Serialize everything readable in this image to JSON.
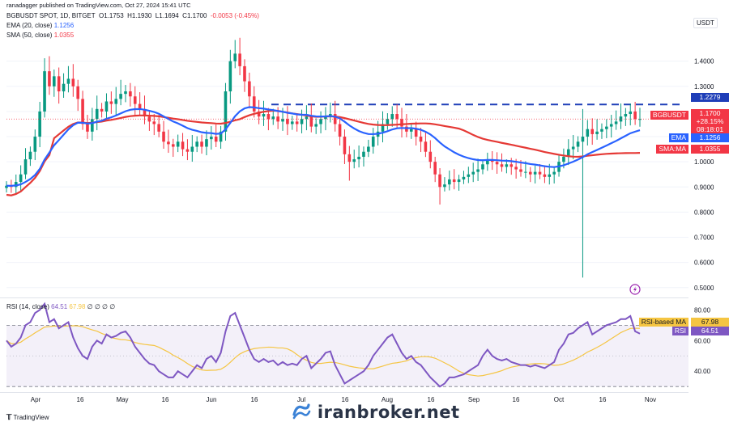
{
  "published": "ranadagger published on TradingView.com, Oct 27, 2024 15:41 UTC",
  "symbol_line": "BGBUSDT SPOT, 1D, BITGET",
  "ohlc": {
    "O": "1.1753",
    "H": "1.1930",
    "L": "1.1694",
    "C": "1.1700",
    "chg": "-0.0053 (-0.45%)"
  },
  "ema_label": "EMA (20, close)",
  "ema_value": "1.1256",
  "sma_label": "SMA (50, close)",
  "sma_value": "1.0355",
  "rsi_label": "RSI (14, close)",
  "rsi_value": "64.51",
  "rsi_ma_value": "67.98",
  "rsi_extra": "∅ ∅ ∅ ∅",
  "currency": "USDT",
  "tags": {
    "resistance": "1.2279",
    "symbol": "BGBUSDT",
    "price": "1.1700",
    "pct": "+28.15%",
    "countdown": "08:18:01",
    "ema": "EMA",
    "ema_val": "1.1256",
    "sma": "SMA:MA",
    "sma_val": "1.0355",
    "rsi_ma": "RSI-based MA",
    "rsi_ma_val": "67.98",
    "rsi": "RSI",
    "rsi_val": "64.51"
  },
  "watermark": "iranbroker.net",
  "tv_logo": "TradingView",
  "colors": {
    "up": "#089981",
    "down": "#f23645",
    "ema": "#2962ff",
    "sma": "#f23645",
    "rsi": "#7e57c2",
    "rsi_ma": "#f5c542",
    "resistance": "#1e3eb8"
  },
  "chart_data": [
    {
      "type": "candlestick",
      "title": "BGBUSDT SPOT, 1D, BITGET",
      "ylabel": "USDT",
      "ylim": [
        0.48,
        1.55
      ],
      "y_ticks": [
        0.5,
        0.6,
        0.7,
        0.8,
        0.9,
        1.0,
        1.1,
        1.2,
        1.3,
        1.4
      ],
      "y_tick_labels": [
        "0.5000",
        "0.6000",
        "0.7000",
        "0.8000",
        "0.9000",
        "1.0000",
        "1.1000",
        "1.2000",
        "1.3000",
        "1.4000"
      ],
      "x_ticks": [
        "Apr",
        "16",
        "May",
        "16",
        "Jun",
        "16",
        "Jul",
        "16",
        "Aug",
        "16",
        "Sep",
        "16",
        "Oct",
        "16",
        "Nov"
      ],
      "resistance_level": 1.2279,
      "close_series": [
        0.905,
        0.9,
        0.92,
        0.95,
        1.01,
        1.04,
        1.1,
        1.2,
        1.36,
        1.3,
        1.34,
        1.28,
        1.31,
        1.33,
        1.3,
        1.25,
        1.15,
        1.12,
        1.17,
        1.21,
        1.2,
        1.24,
        1.23,
        1.25,
        1.27,
        1.28,
        1.26,
        1.23,
        1.21,
        1.18,
        1.16,
        1.15,
        1.12,
        1.08,
        1.07,
        1.06,
        1.08,
        1.05,
        1.04,
        1.06,
        1.08,
        1.06,
        1.09,
        1.1,
        1.08,
        1.12,
        1.28,
        1.4,
        1.43,
        1.38,
        1.32,
        1.26,
        1.2,
        1.18,
        1.19,
        1.17,
        1.18,
        1.16,
        1.17,
        1.15,
        1.16,
        1.15,
        1.17,
        1.18,
        1.14,
        1.15,
        1.17,
        1.18,
        1.19,
        1.15,
        1.1,
        1.03,
        1.0,
        1.01,
        1.02,
        1.04,
        1.06,
        1.1,
        1.12,
        1.15,
        1.17,
        1.19,
        1.17,
        1.14,
        1.12,
        1.13,
        1.1,
        1.08,
        1.04,
        1.0,
        0.95,
        0.9,
        0.91,
        0.93,
        0.92,
        0.93,
        0.94,
        0.95,
        0.96,
        0.97,
        0.99,
        1.01,
        1.0,
        0.99,
        0.98,
        0.99,
        0.98,
        0.97,
        0.96,
        0.96,
        0.95,
        0.96,
        0.95,
        0.94,
        0.95,
        0.96,
        1.0,
        1.02,
        1.05,
        1.06,
        1.08,
        1.1,
        1.13,
        1.11,
        1.12,
        1.13,
        1.14,
        1.15,
        1.16,
        1.18,
        1.19,
        1.2,
        1.17,
        1.17
      ],
      "series": [
        {
          "name": "EMA (20, close)",
          "last": 1.1256
        },
        {
          "name": "SMA (50, close)",
          "last": 1.0355
        }
      ]
    },
    {
      "type": "line",
      "title": "RSI (14, close)",
      "ylim": [
        28,
        86
      ],
      "y_ticks": [
        40,
        60,
        80
      ],
      "y_tick_labels": [
        "40.00",
        "60.00",
        "80.00"
      ],
      "bands": [
        30,
        50,
        70
      ],
      "series": [
        {
          "name": "RSI",
          "values": [
            60,
            56,
            58,
            62,
            70,
            72,
            78,
            80,
            84,
            72,
            74,
            68,
            70,
            72,
            62,
            55,
            50,
            48,
            56,
            60,
            58,
            64,
            62,
            63,
            65,
            66,
            62,
            56,
            52,
            48,
            45,
            44,
            40,
            38,
            36,
            36,
            40,
            38,
            36,
            40,
            44,
            42,
            48,
            50,
            46,
            52,
            66,
            76,
            78,
            70,
            62,
            54,
            48,
            46,
            48,
            46,
            47,
            44,
            46,
            44,
            45,
            44,
            48,
            50,
            42,
            45,
            48,
            52,
            53,
            44,
            38,
            32,
            34,
            36,
            38,
            40,
            44,
            50,
            54,
            58,
            62,
            64,
            58,
            52,
            48,
            50,
            46,
            44,
            40,
            36,
            33,
            30,
            32,
            36,
            36,
            37,
            38,
            40,
            42,
            44,
            50,
            54,
            50,
            48,
            47,
            48,
            46,
            45,
            44,
            44,
            43,
            44,
            43,
            42,
            44,
            46,
            54,
            58,
            64,
            65,
            68,
            70,
            72,
            64,
            66,
            68,
            70,
            71,
            72,
            74,
            74,
            76,
            66,
            64.51
          ]
        },
        {
          "name": "RSI-based MA",
          "last": 67.98
        }
      ]
    }
  ]
}
